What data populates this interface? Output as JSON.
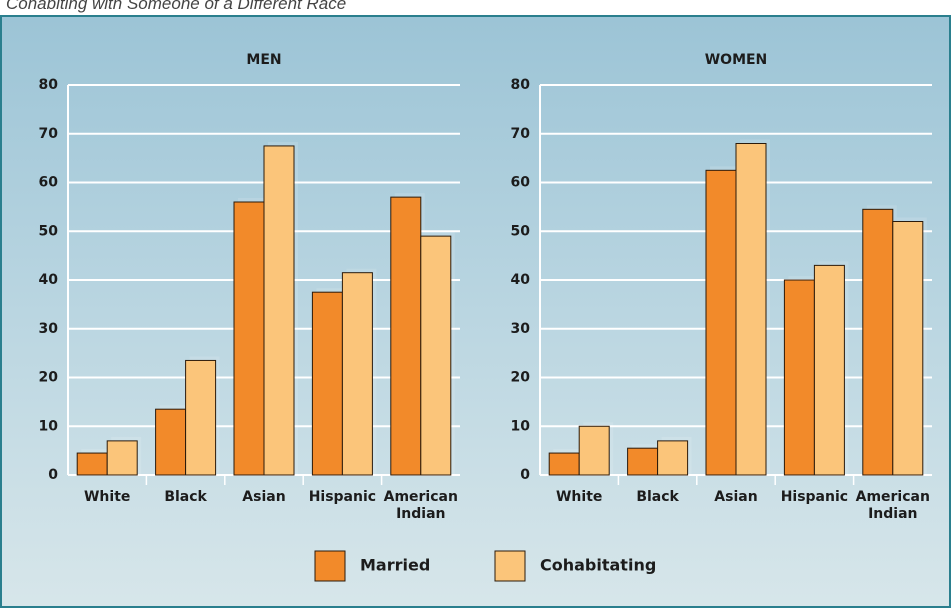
{
  "header": {
    "title": "Cohabiting with Someone of a Different Race"
  },
  "chart_data": [
    {
      "type": "bar",
      "title": "MEN",
      "categories": [
        "White",
        "Black",
        "Asian",
        "Hispanic",
        "American Indian"
      ],
      "series": [
        {
          "name": "Married",
          "color": "#f28a2a",
          "values": [
            4.5,
            13.5,
            56,
            37.5,
            57
          ]
        },
        {
          "name": "Cohabitating",
          "color": "#fbc57a",
          "values": [
            7,
            23.5,
            67.5,
            41.5,
            49
          ]
        }
      ],
      "ylim": [
        0,
        80
      ],
      "yticks": [
        0,
        10,
        20,
        30,
        40,
        50,
        60,
        70,
        80
      ],
      "grid": true
    },
    {
      "type": "bar",
      "title": "WOMEN",
      "categories": [
        "White",
        "Black",
        "Asian",
        "Hispanic",
        "American Indian"
      ],
      "series": [
        {
          "name": "Married",
          "color": "#f28a2a",
          "values": [
            4.5,
            5.5,
            62.5,
            40,
            54.5
          ]
        },
        {
          "name": "Cohabitating",
          "color": "#fbc57a",
          "values": [
            10,
            7,
            68,
            43,
            52
          ]
        }
      ],
      "ylim": [
        0,
        80
      ],
      "yticks": [
        0,
        10,
        20,
        30,
        40,
        50,
        60,
        70,
        80
      ],
      "grid": true
    }
  ]
}
